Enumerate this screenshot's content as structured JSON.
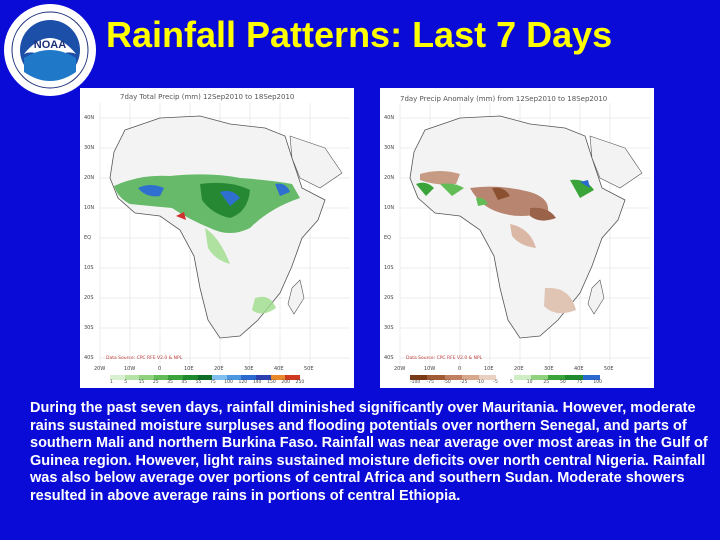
{
  "slide": {
    "title": "Rainfall Patterns: Last 7 Days",
    "caption": "During the past seven days, rainfall diminished significantly over Mauritania. However, moderate rains sustained moisture surpluses and flooding potentials over northern Senegal, and parts of southern Mali and northern Burkina Faso. Rainfall was near average over most areas in the Gulf of Guinea region. However, light rains sustained moisture deficits over north central Nigeria. Rainfall was also below average over portions of central Africa and southern Sudan. Moderate showers resulted in above average rains in portions of central Ethiopia."
  },
  "colors": {
    "background": "#0b0bd8",
    "title": "#ffff00",
    "caption": "#ffffff"
  },
  "left_map": {
    "title": "7day Total Precip (mm)   12Sep2010 to 18Sep2010",
    "source": "Data Source:   CPC RFE V2.0 & NPL",
    "lat_labels": [
      "40N",
      "30N",
      "20N",
      "10N",
      "EQ",
      "10S",
      "20S",
      "30S",
      "40S"
    ],
    "lon_labels": [
      "20W",
      "10W",
      "0",
      "10E",
      "20E",
      "30E",
      "40E",
      "50E"
    ],
    "legend_labels": [
      "1",
      "5",
      "15",
      "25",
      "35",
      "45",
      "55",
      "75",
      "100",
      "120",
      "140",
      "150",
      "200",
      "250"
    ]
  },
  "right_map": {
    "title": "7day Precip Anomaly (mm) from 12Sep2010 to 18Sep2010",
    "source": "Data Source:   CPC RFE V2.0 & NPL",
    "lat_labels": [
      "40N",
      "30N",
      "20N",
      "10N",
      "EQ",
      "10S",
      "20S",
      "30S",
      "40S"
    ],
    "lon_labels": [
      "20W",
      "10W",
      "0",
      "10E",
      "20E",
      "30E",
      "40E",
      "50E"
    ],
    "legend_labels": [
      "-100",
      "-75",
      "-50",
      "-25",
      "-10",
      "-5",
      "5",
      "10",
      "25",
      "50",
      "75",
      "100"
    ]
  },
  "logo": {
    "text": "NOAA",
    "ring_text": "NATIONAL OCEANIC AND ATMOSPHERIC ADMINISTRATION · U.S. DEPARTMENT OF COMMERCE"
  }
}
